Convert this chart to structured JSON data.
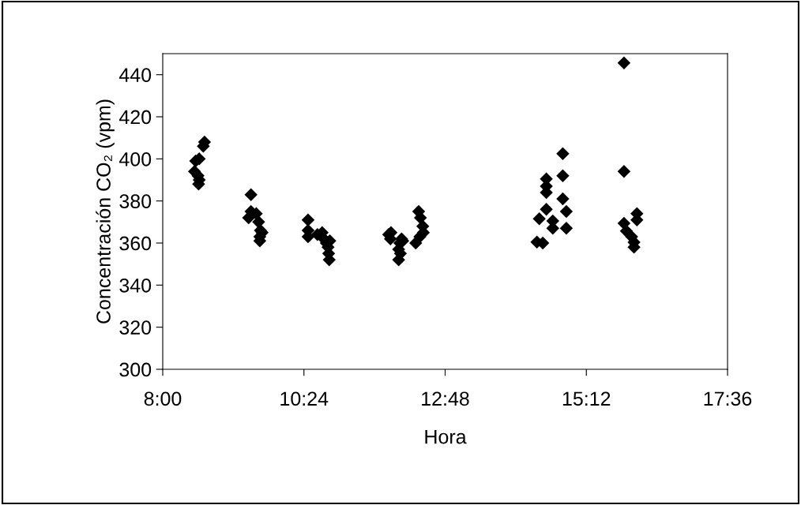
{
  "chart_data": {
    "type": "scatter",
    "xlabel": "Hora",
    "ylabel": "Concentración CO₂ (vpm)",
    "xlim": [
      8,
      17.6
    ],
    "xticks": [
      {
        "value": 8,
        "label": "8:00"
      },
      {
        "value": 10.4,
        "label": "10:24"
      },
      {
        "value": 12.8,
        "label": "12:48"
      },
      {
        "value": 15.2,
        "label": "15:12"
      },
      {
        "value": 17.6,
        "label": "17:36"
      }
    ],
    "ylim": [
      300,
      450
    ],
    "yticks": [
      300,
      320,
      340,
      360,
      380,
      400,
      420,
      440
    ],
    "marker": "diamond",
    "grid": false,
    "legend": false,
    "series": [
      {
        "color": "#000000",
        "x": [
          8.56,
          8.62,
          8.54,
          8.6,
          8.62,
          8.61,
          8.69,
          8.71,
          9.5,
          9.5,
          9.46,
          9.59,
          9.63,
          9.66,
          9.65,
          9.65,
          9.69,
          10.47,
          10.47,
          10.47,
          10.63,
          10.71,
          10.74,
          10.78,
          10.81,
          10.82,
          10.83,
          10.84,
          11.84,
          11.87,
          11.88,
          12.03,
          12.06,
          12.01,
          12.04,
          12.01,
          12.08,
          12.35,
          12.38,
          12.42,
          12.43,
          12.3,
          12.37,
          14.8,
          14.8,
          14.52,
          14.52,
          14.52,
          14.8,
          14.86,
          14.52,
          14.4,
          14.63,
          14.86,
          14.63,
          14.36,
          14.46,
          15.84,
          15.84,
          15.84,
          16.06,
          16.06,
          15.88,
          15.97,
          16.01,
          16.01
        ],
        "values": [
          399,
          400,
          394,
          392,
          390,
          388,
          406,
          408,
          383,
          375,
          372,
          374,
          370,
          366,
          363,
          361,
          365,
          371,
          366,
          363,
          364,
          365,
          362,
          360,
          358,
          355,
          352,
          361,
          364,
          362,
          365,
          360,
          362,
          357,
          355,
          352,
          361,
          375,
          372,
          368,
          365,
          360,
          363,
          402.5,
          392,
          390.5,
          387,
          384,
          381,
          375,
          376,
          371.5,
          370.5,
          367,
          367,
          360.5,
          360,
          445.6,
          394,
          369.4,
          374,
          371,
          365.7,
          363,
          360.4,
          358
        ]
      }
    ]
  }
}
